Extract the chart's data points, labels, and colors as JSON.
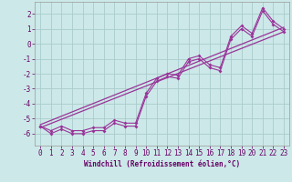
{
  "xlabel": "Windchill (Refroidissement éolien,°C)",
  "background_color": "#cce8e8",
  "grid_color": "#aacccc",
  "line_color": "#993399",
  "xlim": [
    -0.5,
    23.5
  ],
  "ylim": [
    -6.8,
    2.8
  ],
  "xticks": [
    0,
    1,
    2,
    3,
    4,
    5,
    6,
    7,
    8,
    9,
    10,
    11,
    12,
    13,
    14,
    15,
    16,
    17,
    18,
    19,
    20,
    21,
    22,
    23
  ],
  "yticks": [
    -6,
    -5,
    -4,
    -3,
    -2,
    -1,
    0,
    1,
    2
  ],
  "series1_x": [
    0,
    1,
    2,
    3,
    4,
    5,
    6,
    7,
    8,
    9,
    10,
    11,
    12,
    13,
    14,
    15,
    16,
    17,
    18,
    19,
    20,
    21,
    22,
    23
  ],
  "series1_y": [
    -5.5,
    -6.0,
    -5.7,
    -6.0,
    -6.0,
    -5.8,
    -5.8,
    -5.3,
    -5.5,
    -5.5,
    -3.5,
    -2.5,
    -2.2,
    -2.3,
    -1.2,
    -1.0,
    -1.6,
    -1.8,
    0.3,
    1.0,
    0.5,
    2.2,
    1.3,
    0.8
  ],
  "series2_x": [
    0,
    1,
    2,
    3,
    4,
    5,
    6,
    7,
    8,
    9,
    10,
    11,
    12,
    13,
    14,
    15,
    16,
    17,
    18,
    19,
    20,
    21,
    22,
    23
  ],
  "series2_y": [
    -5.5,
    -5.8,
    -5.5,
    -5.8,
    -5.8,
    -5.6,
    -5.6,
    -5.1,
    -5.3,
    -5.3,
    -3.3,
    -2.3,
    -2.0,
    -2.1,
    -1.0,
    -0.8,
    -1.4,
    -1.6,
    0.5,
    1.2,
    0.7,
    2.4,
    1.5,
    1.0
  ],
  "line1_x": [
    0,
    23
  ],
  "line1_y": [
    -5.6,
    0.8
  ],
  "line2_x": [
    0,
    23
  ],
  "line2_y": [
    -5.4,
    1.1
  ],
  "tick_color": "#660066",
  "tick_fontsize": 5.5,
  "xlabel_fontsize": 5.5
}
